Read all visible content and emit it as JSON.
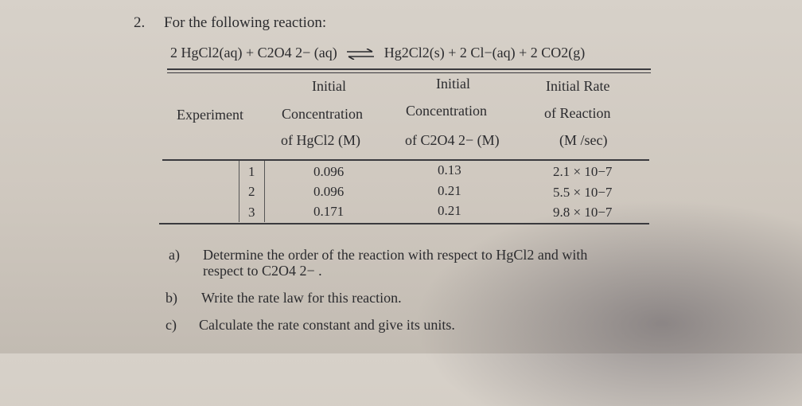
{
  "question": {
    "number": "2.",
    "prompt": "For the following reaction:",
    "reactants": "2 HgCl2(aq) + C2O4 2− (aq)",
    "products": "Hg2Cl2(s) + 2 Cl−(aq) + 2 CO2(g)"
  },
  "table": {
    "headers": {
      "experiment": "Experiment",
      "hg_line1": "Initial",
      "hg_line2": "Concentration",
      "hg_line3": "of HgCl2 (M)",
      "ox_line1": "Initial",
      "ox_line2": "Concentration",
      "ox_line3": "of C2O4 2− (M)",
      "rate_line1": "Initial Rate",
      "rate_line2": "of Reaction",
      "rate_line3": "(M /sec)"
    },
    "rows": [
      {
        "exp": "1",
        "hgcl2": "0.096",
        "c2o4": "0.13",
        "rate": "2.1 × 10−7"
      },
      {
        "exp": "2",
        "hgcl2": "0.096",
        "c2o4": "0.21",
        "rate": "5.5 × 10−7"
      },
      {
        "exp": "3",
        "hgcl2": "0.171",
        "c2o4": "0.21",
        "rate": "9.8 × 10−7"
      }
    ]
  },
  "subquestions": [
    {
      "label": "a)",
      "line1": "Determine the order of the reaction with respect to HgCl2 and with",
      "line2": "respect to C2O4 2− ."
    },
    {
      "label": "b)",
      "line1": "Write the rate law for this reaction."
    },
    {
      "label": "c)",
      "line1": "Calculate the rate constant and give its units."
    }
  ]
}
